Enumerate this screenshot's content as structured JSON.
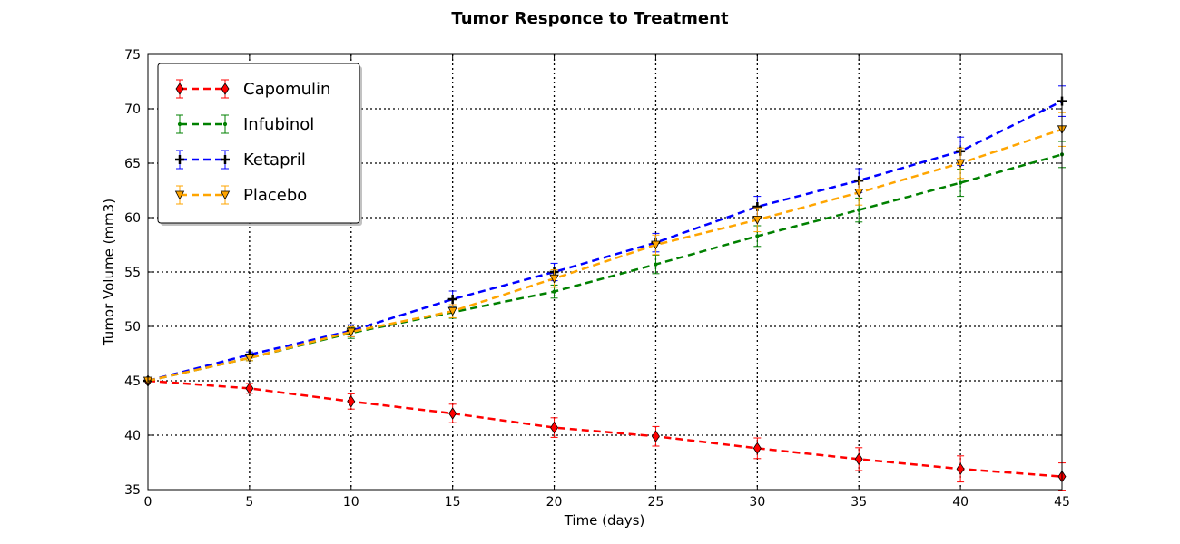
{
  "chart_data": {
    "type": "line",
    "title": "Tumor Responce to Treatment",
    "xlabel": "Time (days)",
    "ylabel": "Tumor Volume (mm3)",
    "xlim": [
      0,
      45
    ],
    "ylim": [
      35,
      75
    ],
    "xticks": [
      0,
      5,
      10,
      15,
      20,
      25,
      30,
      35,
      40,
      45
    ],
    "yticks": [
      35,
      40,
      45,
      50,
      55,
      60,
      65,
      70,
      75
    ],
    "grid": true,
    "legend_position": "top-left",
    "x": [
      0,
      5,
      10,
      15,
      20,
      25,
      30,
      35,
      40,
      45
    ],
    "series": [
      {
        "name": "Capomulin",
        "color": "#ff0000",
        "marker": "diamond",
        "values": [
          45.0,
          44.3,
          43.1,
          42.0,
          40.7,
          39.9,
          38.8,
          37.8,
          36.9,
          36.2
        ],
        "errors": [
          0.0,
          0.45,
          0.7,
          0.85,
          0.9,
          0.9,
          0.95,
          1.05,
          1.2,
          1.25
        ]
      },
      {
        "name": "Infubinol",
        "color": "#008000",
        "marker": "dot",
        "values": [
          45.0,
          47.1,
          49.4,
          51.3,
          53.2,
          55.7,
          58.3,
          60.7,
          63.2,
          65.8
        ],
        "errors": [
          0.0,
          0.25,
          0.5,
          0.55,
          0.6,
          0.85,
          0.95,
          1.1,
          1.25,
          1.2
        ]
      },
      {
        "name": "Ketapril",
        "color": "#0000ff",
        "marker": "plus",
        "values": [
          45.0,
          47.4,
          49.6,
          52.5,
          55.0,
          57.7,
          61.0,
          63.4,
          66.1,
          70.7
        ],
        "errors": [
          0.0,
          0.25,
          0.55,
          0.75,
          0.8,
          0.85,
          0.95,
          1.1,
          1.3,
          1.4
        ]
      },
      {
        "name": "Placebo",
        "color": "#ffa500",
        "marker": "triangle-down",
        "values": [
          45.0,
          47.1,
          49.5,
          51.4,
          54.4,
          57.5,
          59.8,
          62.3,
          65.0,
          68.1
        ],
        "errors": [
          0.0,
          0.25,
          0.45,
          0.6,
          0.8,
          0.9,
          1.1,
          1.15,
          1.4,
          1.55
        ]
      }
    ]
  }
}
